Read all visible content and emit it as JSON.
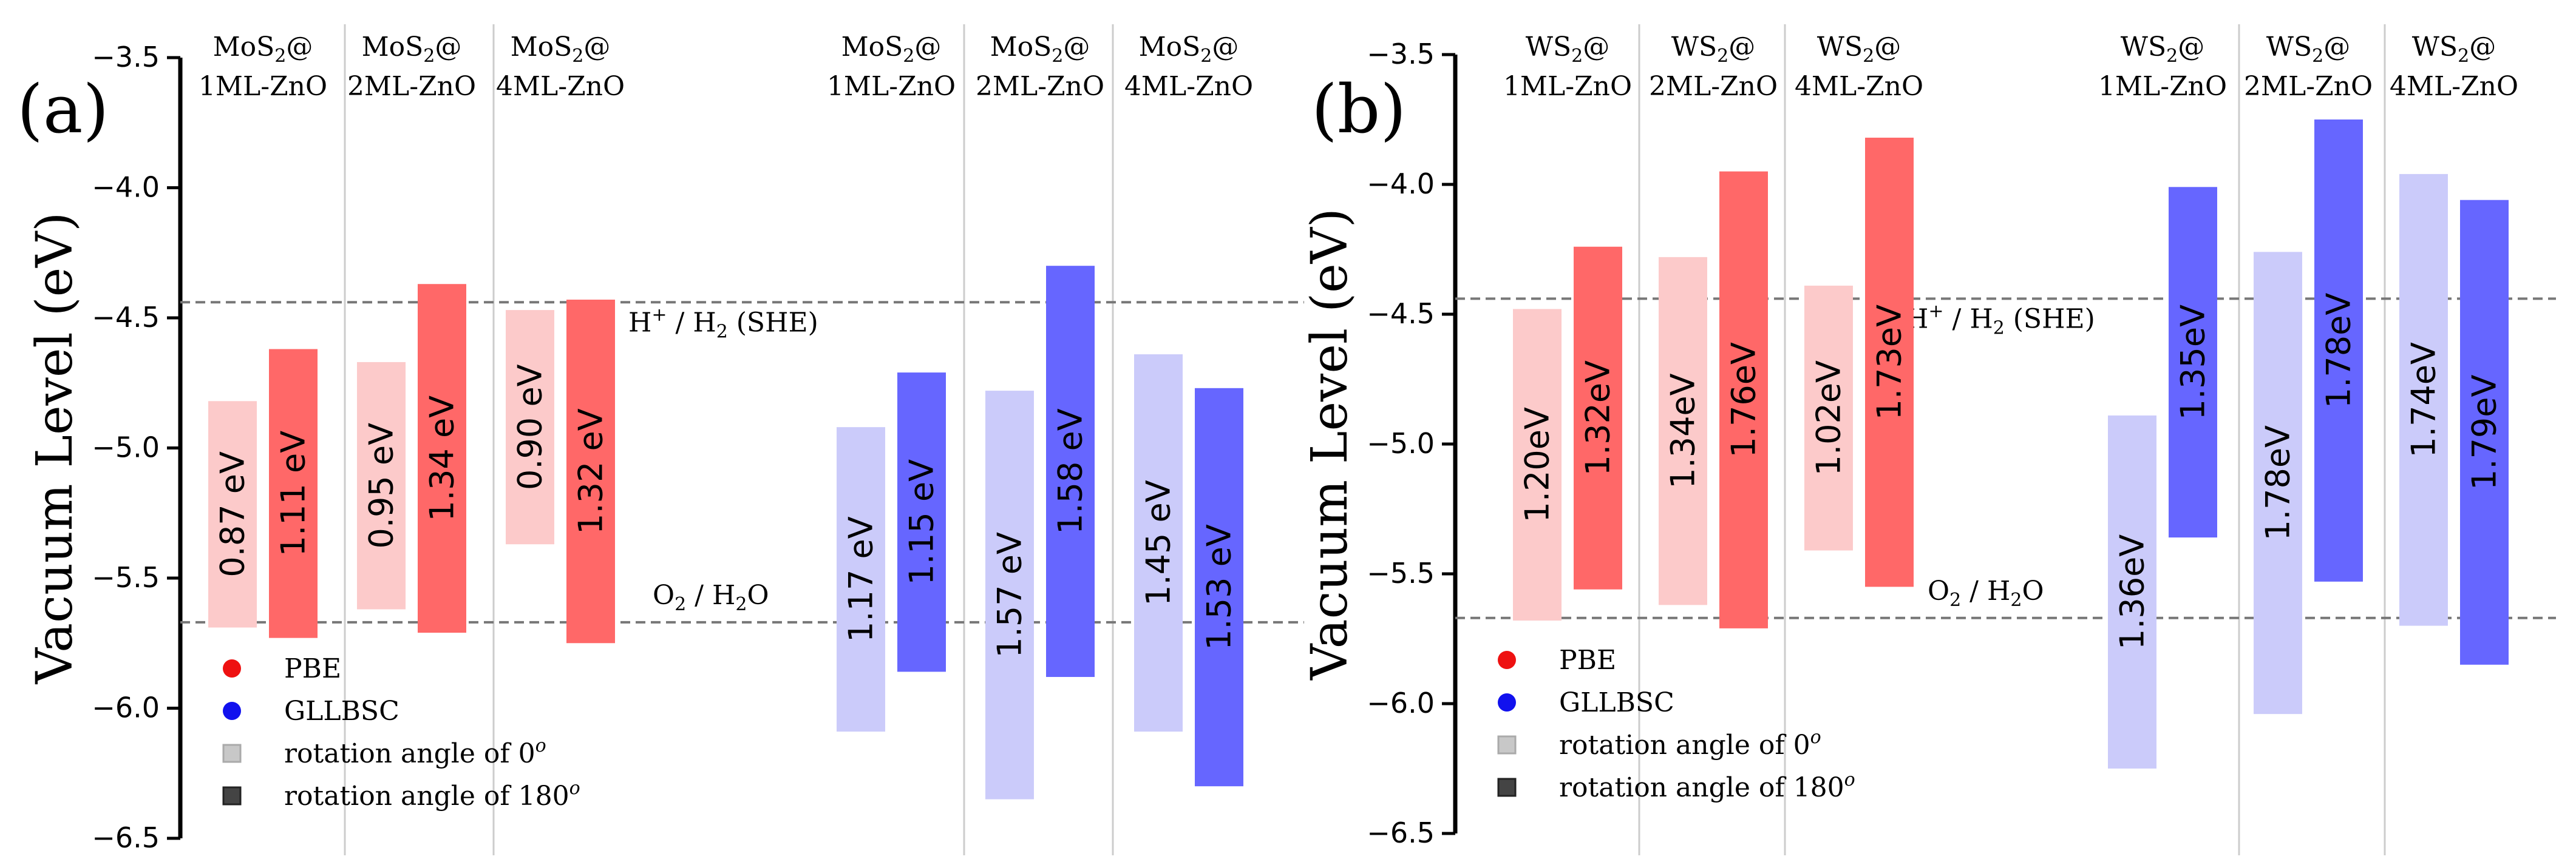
{
  "chart_data": [
    {
      "type": "bar",
      "panel_label": "(a)",
      "ylabel": "Vacuum Level (eV)",
      "ylim": [
        -6.5,
        -3.5
      ],
      "yticks": [
        -3.5,
        -4.0,
        -4.5,
        -5.0,
        -5.5,
        -6.0,
        -6.5
      ],
      "ytick_labels": [
        "−3.5",
        "−4.0",
        "−4.5",
        "−5.0",
        "−5.5",
        "−6.0",
        "−6.5"
      ],
      "ref_lines": [
        {
          "name": "H+/H2",
          "y": -4.44,
          "label_main": "H",
          "label_sup": "+",
          "label_rest": " / H",
          "label_sub": "2",
          "label_tail": " (SHE)"
        },
        {
          "name": "O2/H2O",
          "y": -5.67,
          "label_main": "O",
          "label_sub": "2",
          "label_rest": " / H",
          "label_sub2": "2",
          "label_tail": "O"
        }
      ],
      "groups": [
        {
          "line1_main": "MoS",
          "line1_sub": "2",
          "line1_tail": "@",
          "line2": "1ML-ZnO"
        },
        {
          "line1_main": "MoS",
          "line1_sub": "2",
          "line1_tail": "@",
          "line2": "2ML-ZnO"
        },
        {
          "line1_main": "MoS",
          "line1_sub": "2",
          "line1_tail": "@",
          "line2": "4ML-ZnO"
        },
        {
          "line1_main": "MoS",
          "line1_sub": "2",
          "line1_tail": "@",
          "line2": "1ML-ZnO"
        },
        {
          "line1_main": "MoS",
          "line1_sub": "2",
          "line1_tail": "@",
          "line2": "2ML-ZnO"
        },
        {
          "line1_main": "MoS",
          "line1_sub": "2",
          "line1_tail": "@",
          "line2": "4ML-ZnO"
        }
      ],
      "bars": [
        {
          "group": 0,
          "method": "PBE",
          "angle": 0,
          "cbm": -4.82,
          "vbm": -5.69,
          "label": "0.87 eV"
        },
        {
          "group": 0,
          "method": "PBE",
          "angle": 180,
          "cbm": -4.62,
          "vbm": -5.73,
          "label": "1.11 eV"
        },
        {
          "group": 1,
          "method": "PBE",
          "angle": 0,
          "cbm": -4.67,
          "vbm": -5.62,
          "label": "0.95 eV"
        },
        {
          "group": 1,
          "method": "PBE",
          "angle": 180,
          "cbm": -4.37,
          "vbm": -5.71,
          "label": "1.34 eV"
        },
        {
          "group": 2,
          "method": "PBE",
          "angle": 0,
          "cbm": -4.47,
          "vbm": -5.37,
          "label": "0.90 eV"
        },
        {
          "group": 2,
          "method": "PBE",
          "angle": 180,
          "cbm": -4.43,
          "vbm": -5.75,
          "label": "1.32 eV"
        },
        {
          "group": 3,
          "method": "GLLBSC",
          "angle": 0,
          "cbm": -4.92,
          "vbm": -6.09,
          "label": "1.17 eV"
        },
        {
          "group": 3,
          "method": "GLLBSC",
          "angle": 180,
          "cbm": -4.71,
          "vbm": -5.86,
          "label": "1.15 eV"
        },
        {
          "group": 4,
          "method": "GLLBSC",
          "angle": 0,
          "cbm": -4.78,
          "vbm": -6.35,
          "label": "1.57 eV"
        },
        {
          "group": 4,
          "method": "GLLBSC",
          "angle": 180,
          "cbm": -4.3,
          "vbm": -5.88,
          "label": "1.58 eV"
        },
        {
          "group": 5,
          "method": "GLLBSC",
          "angle": 0,
          "cbm": -4.64,
          "vbm": -6.09,
          "label": "1.45 eV"
        },
        {
          "group": 5,
          "method": "GLLBSC",
          "angle": 180,
          "cbm": -4.77,
          "vbm": -6.3,
          "label": "1.53 eV"
        }
      ],
      "legend": [
        {
          "label": "PBE",
          "marker": "dot",
          "color": "#ee1111"
        },
        {
          "label": "GLLBSC",
          "marker": "dot",
          "color": "#1111ee"
        },
        {
          "label": "rotation angle of 0",
          "sup": "o",
          "marker": "square-light",
          "color": "#c8c8c8"
        },
        {
          "label": "rotation angle of 180",
          "sup": "o",
          "marker": "square-dark",
          "color": "#444444"
        }
      ]
    },
    {
      "type": "bar",
      "panel_label": "(b)",
      "ylabel": "Vacuum Level (eV)",
      "ylim": [
        -6.5,
        -3.5
      ],
      "yticks": [
        -3.5,
        -4.0,
        -4.5,
        -5.0,
        -5.5,
        -6.0,
        -6.5
      ],
      "ytick_labels": [
        "−3.5",
        "−4.0",
        "−4.5",
        "−5.0",
        "−5.5",
        "−6.0",
        "−6.5"
      ],
      "ref_lines": [
        {
          "name": "H+/H2",
          "y": -4.44,
          "label_main": "H",
          "label_sup": "+",
          "label_rest": " / H",
          "label_sub": "2",
          "label_tail": " (SHE)"
        },
        {
          "name": "O2/H2O",
          "y": -5.67,
          "label_main": "O",
          "label_sub": "2",
          "label_rest": " / H",
          "label_sub2": "2",
          "label_tail": "O"
        }
      ],
      "groups": [
        {
          "line1_main": "WS",
          "line1_sub": "2",
          "line1_tail": "@",
          "line2": "1ML-ZnO"
        },
        {
          "line1_main": "WS",
          "line1_sub": "2",
          "line1_tail": "@",
          "line2": "2ML-ZnO"
        },
        {
          "line1_main": "WS",
          "line1_sub": "2",
          "line1_tail": "@",
          "line2": "4ML-ZnO"
        },
        {
          "line1_main": "WS",
          "line1_sub": "2",
          "line1_tail": "@",
          "line2": "1ML-ZnO"
        },
        {
          "line1_main": "WS",
          "line1_sub": "2",
          "line1_tail": "@",
          "line2": "2ML-ZnO"
        },
        {
          "line1_main": "WS",
          "line1_sub": "2",
          "line1_tail": "@",
          "line2": "4ML-ZnO"
        }
      ],
      "bars": [
        {
          "group": 0,
          "method": "PBE",
          "angle": 0,
          "cbm": -4.48,
          "vbm": -5.68,
          "label": "1.20eV"
        },
        {
          "group": 0,
          "method": "PBE",
          "angle": 180,
          "cbm": -4.24,
          "vbm": -5.56,
          "label": "1.32eV"
        },
        {
          "group": 1,
          "method": "PBE",
          "angle": 0,
          "cbm": -4.28,
          "vbm": -5.62,
          "label": "1.34eV"
        },
        {
          "group": 1,
          "method": "PBE",
          "angle": 180,
          "cbm": -3.95,
          "vbm": -5.71,
          "label": "1.76eV"
        },
        {
          "group": 2,
          "method": "PBE",
          "angle": 0,
          "cbm": -4.39,
          "vbm": -5.41,
          "label": "1.02eV"
        },
        {
          "group": 2,
          "method": "PBE",
          "angle": 180,
          "cbm": -3.82,
          "vbm": -5.55,
          "label": "1.73eV"
        },
        {
          "group": 3,
          "method": "GLLBSC",
          "angle": 0,
          "cbm": -4.89,
          "vbm": -6.25,
          "label": "1.36eV"
        },
        {
          "group": 3,
          "method": "GLLBSC",
          "angle": 180,
          "cbm": -4.01,
          "vbm": -5.36,
          "label": "1.35eV"
        },
        {
          "group": 4,
          "method": "GLLBSC",
          "angle": 0,
          "cbm": -4.26,
          "vbm": -6.04,
          "label": "1.78eV"
        },
        {
          "group": 4,
          "method": "GLLBSC",
          "angle": 180,
          "cbm": -3.75,
          "vbm": -5.53,
          "label": "1.78eV"
        },
        {
          "group": 5,
          "method": "GLLBSC",
          "angle": 0,
          "cbm": -3.96,
          "vbm": -5.7,
          "label": "1.74eV"
        },
        {
          "group": 5,
          "method": "GLLBSC",
          "angle": 180,
          "cbm": -4.06,
          "vbm": -5.85,
          "label": "1.79eV"
        }
      ],
      "legend": [
        {
          "label": "PBE",
          "marker": "dot",
          "color": "#ee1111"
        },
        {
          "label": "GLLBSC",
          "marker": "dot",
          "color": "#1111ee"
        },
        {
          "label": "rotation angle of 0",
          "sup": "o",
          "marker": "square-light",
          "color": "#c8c8c8"
        },
        {
          "label": "rotation angle of 180",
          "sup": "o",
          "marker": "square-dark",
          "color": "#444444"
        }
      ]
    }
  ],
  "colors": {
    "pbe_0": "#fccaca",
    "pbe_180": "#ff6868",
    "gllbsc_0": "#cbcbfa",
    "gllbsc_180": "#6666ff",
    "ref_line": "#777777",
    "separator": "#cccccc",
    "axis": "#000000"
  }
}
